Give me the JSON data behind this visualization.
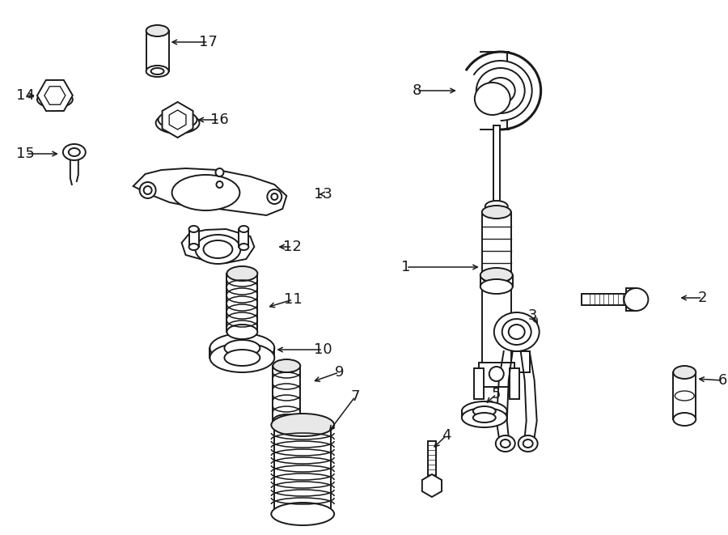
{
  "bg_color": "#ffffff",
  "line_color": "#1a1a1a",
  "figsize": [
    9.0,
    6.61
  ],
  "dpi": 100,
  "labels": [
    [
      1,
      0.555,
      0.515,
      0.585,
      0.515
    ],
    [
      2,
      0.895,
      0.44,
      0.855,
      0.44
    ],
    [
      3,
      0.685,
      0.395,
      0.71,
      0.395
    ],
    [
      4,
      0.545,
      0.15,
      0.545,
      0.175
    ],
    [
      5,
      0.615,
      0.19,
      0.615,
      0.215
    ],
    [
      6,
      0.91,
      0.21,
      0.875,
      0.21
    ],
    [
      7,
      0.445,
      0.175,
      0.41,
      0.185
    ],
    [
      8,
      0.535,
      0.855,
      0.575,
      0.855
    ],
    [
      9,
      0.43,
      0.32,
      0.405,
      0.32
    ],
    [
      10,
      0.405,
      0.415,
      0.375,
      0.415
    ],
    [
      11,
      0.385,
      0.5,
      0.36,
      0.5
    ],
    [
      12,
      0.375,
      0.585,
      0.35,
      0.585
    ],
    [
      13,
      0.43,
      0.675,
      0.395,
      0.675
    ],
    [
      14,
      0.068,
      0.812,
      0.09,
      0.812
    ],
    [
      15,
      0.068,
      0.74,
      0.092,
      0.74
    ],
    [
      16,
      0.285,
      0.79,
      0.255,
      0.79
    ],
    [
      17,
      0.27,
      0.875,
      0.235,
      0.875
    ]
  ]
}
